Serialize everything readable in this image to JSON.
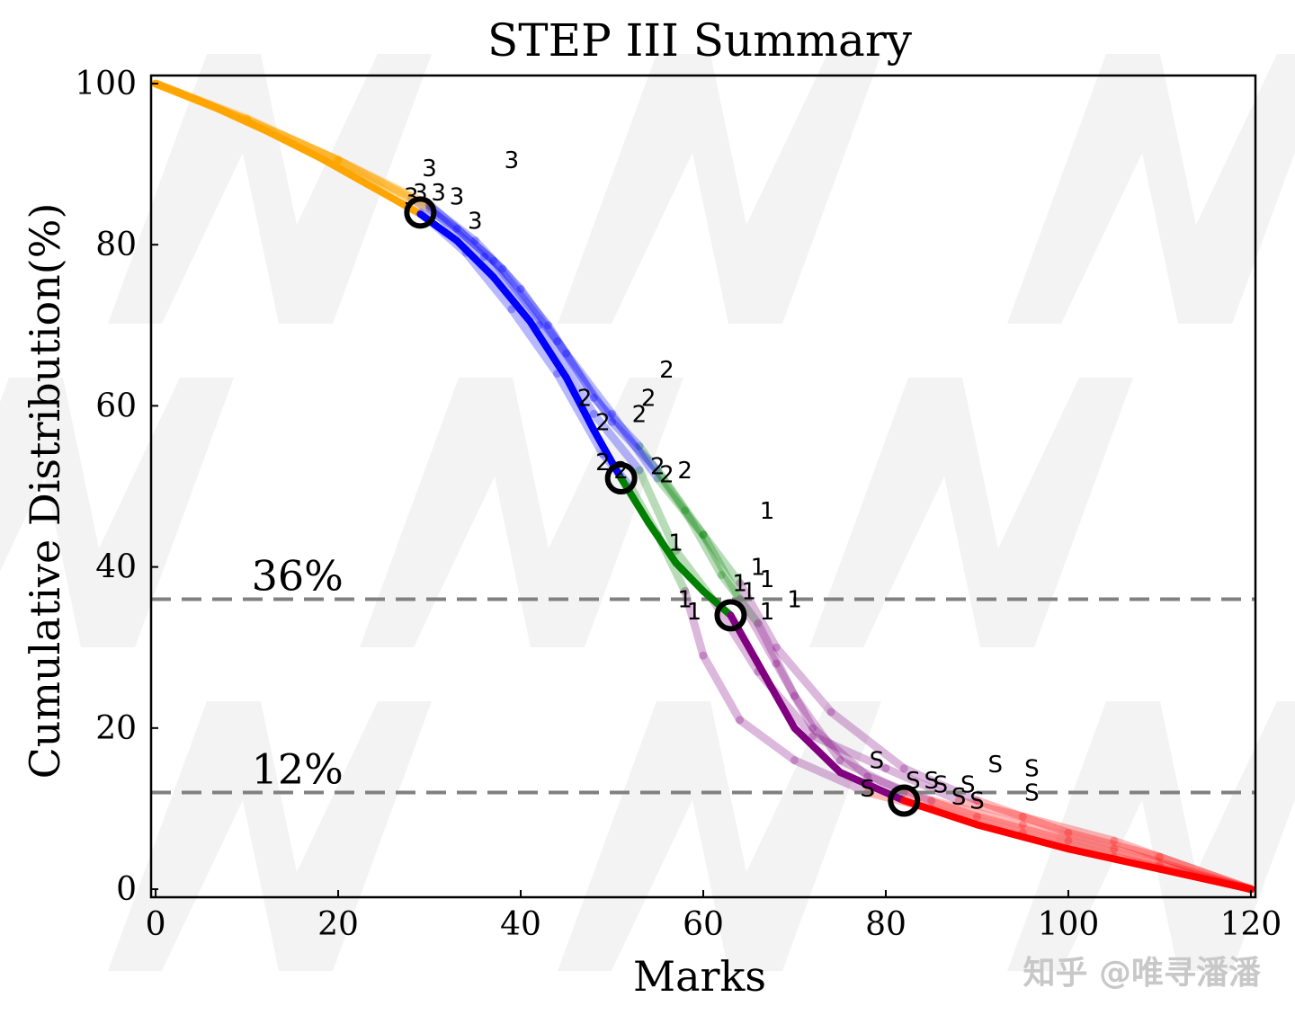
{
  "chart_data": {
    "type": "line",
    "title": "STEP III Summary",
    "xlabel": "Marks",
    "ylabel": "Cumulative Distribution(%)",
    "xlim": [
      -0.5,
      120.5
    ],
    "ylim": [
      -1,
      101
    ],
    "xticks": [
      0,
      20,
      40,
      60,
      80,
      100,
      120
    ],
    "yticks": [
      0,
      20,
      40,
      60,
      80,
      100
    ],
    "grid": false,
    "reference_lines": [
      {
        "y": 36,
        "label": "36%"
      },
      {
        "y": 12,
        "label": "12%"
      }
    ],
    "colors": {
      "below_3": "#FFA500",
      "grade_3": "#0000FF",
      "grade_2": "#008000",
      "grade_1": "#800080",
      "grade_S": "#FF0000",
      "reference": "#808080"
    },
    "main_curve": {
      "x": [
        0,
        6,
        12,
        18,
        24,
        29,
        33,
        37,
        41,
        45,
        48,
        51,
        54,
        57,
        60,
        63,
        66,
        70,
        75,
        82,
        90,
        100,
        110,
        120
      ],
      "y": [
        100,
        97.3,
        94.2,
        90.8,
        87,
        83.8,
        80.5,
        76,
        70.5,
        63.5,
        57,
        51,
        45.5,
        40.5,
        37,
        34,
        28,
        20,
        14.5,
        11,
        8,
        5,
        2.5,
        0
      ]
    },
    "faded_curves": [
      {
        "x": [
          0,
          10,
          20,
          28,
          33,
          38,
          43,
          48,
          53,
          58,
          62,
          66,
          70,
          75,
          82,
          90,
          100,
          110,
          120
        ],
        "y": [
          100,
          95.7,
          90.5,
          85.8,
          82,
          77,
          70,
          61,
          55,
          47,
          39,
          33,
          24,
          16,
          12,
          9,
          6,
          3,
          0
        ]
      },
      {
        "x": [
          0,
          10,
          20,
          30,
          35,
          40,
          45,
          50,
          55,
          60,
          64,
          68,
          72,
          78,
          85,
          95,
          105,
          120
        ],
        "y": [
          100,
          95.5,
          90.5,
          84.8,
          80.5,
          74.5,
          66.5,
          59,
          51,
          44,
          36,
          28,
          20,
          14,
          11,
          8,
          5,
          0
        ]
      },
      {
        "x": [
          0,
          10,
          20,
          29,
          34,
          39,
          44,
          49,
          52,
          55,
          58,
          60,
          64,
          70,
          78,
          85,
          95,
          105,
          120
        ],
        "y": [
          100,
          95.5,
          90.5,
          84,
          79,
          72,
          64,
          54,
          50,
          44,
          37,
          29,
          21,
          16,
          12,
          10,
          7,
          4,
          0
        ]
      },
      {
        "x": [
          0,
          10,
          20,
          30,
          36,
          42,
          48,
          53,
          57,
          61,
          66,
          72,
          80,
          88,
          95,
          105,
          120
        ],
        "y": [
          100,
          95.5,
          90.5,
          84.5,
          78.5,
          70,
          59,
          52,
          42,
          36,
          27,
          19,
          15,
          11,
          9,
          6,
          0
        ]
      },
      {
        "x": [
          0,
          10,
          20,
          30,
          37,
          44,
          50,
          55,
          60,
          64,
          68,
          74,
          82,
          90,
          100,
          110,
          120
        ],
        "y": [
          100,
          95.5,
          90.5,
          85,
          78,
          68,
          58,
          52,
          44,
          38,
          30,
          22,
          15,
          11,
          7,
          4,
          0
        ]
      }
    ],
    "boundary_points": [
      {
        "grade": "3",
        "x": 29,
        "y": 84
      },
      {
        "grade": "2",
        "x": 51,
        "y": 51
      },
      {
        "grade": "1",
        "x": 63,
        "y": 34
      },
      {
        "grade": "S",
        "x": 82,
        "y": 11
      }
    ],
    "annotations": [
      {
        "text": "3",
        "x": 30,
        "y": 89.5
      },
      {
        "text": "3",
        "x": 39,
        "y": 90.5
      },
      {
        "text": "3",
        "x": 28,
        "y": 86
      },
      {
        "text": "3",
        "x": 29,
        "y": 86.5
      },
      {
        "text": "3",
        "x": 31,
        "y": 86.5
      },
      {
        "text": "3",
        "x": 33,
        "y": 86
      },
      {
        "text": "3",
        "x": 35,
        "y": 83
      },
      {
        "text": "2",
        "x": 56,
        "y": 64.5
      },
      {
        "text": "2",
        "x": 47,
        "y": 61
      },
      {
        "text": "2",
        "x": 54,
        "y": 61
      },
      {
        "text": "2",
        "x": 53,
        "y": 59
      },
      {
        "text": "2",
        "x": 49,
        "y": 58
      },
      {
        "text": "2",
        "x": 49,
        "y": 53
      },
      {
        "text": "2",
        "x": 51,
        "y": 52
      },
      {
        "text": "2",
        "x": 55,
        "y": 52.5
      },
      {
        "text": "2",
        "x": 58,
        "y": 52
      },
      {
        "text": "2",
        "x": 56,
        "y": 51.5
      },
      {
        "text": "1",
        "x": 67,
        "y": 47
      },
      {
        "text": "1",
        "x": 57,
        "y": 43
      },
      {
        "text": "1",
        "x": 66,
        "y": 40
      },
      {
        "text": "1",
        "x": 64,
        "y": 38
      },
      {
        "text": "1",
        "x": 67,
        "y": 38.5
      },
      {
        "text": "1",
        "x": 65,
        "y": 37
      },
      {
        "text": "1",
        "x": 58,
        "y": 36
      },
      {
        "text": "1",
        "x": 70,
        "y": 36
      },
      {
        "text": "1",
        "x": 59,
        "y": 34.5
      },
      {
        "text": "1",
        "x": 67,
        "y": 34.5
      },
      {
        "text": "S",
        "x": 79,
        "y": 16
      },
      {
        "text": "S",
        "x": 92,
        "y": 15.5
      },
      {
        "text": "S",
        "x": 96,
        "y": 15
      },
      {
        "text": "S",
        "x": 83,
        "y": 13.5
      },
      {
        "text": "S",
        "x": 85,
        "y": 13.5
      },
      {
        "text": "S",
        "x": 86,
        "y": 13
      },
      {
        "text": "S",
        "x": 89,
        "y": 13
      },
      {
        "text": "S",
        "x": 78,
        "y": 12.5
      },
      {
        "text": "S",
        "x": 96,
        "y": 12
      },
      {
        "text": "S",
        "x": 88,
        "y": 11.5
      },
      {
        "text": "S",
        "x": 90,
        "y": 11
      }
    ]
  },
  "watermark": {
    "text": "知乎 @唯寻潘潘"
  }
}
